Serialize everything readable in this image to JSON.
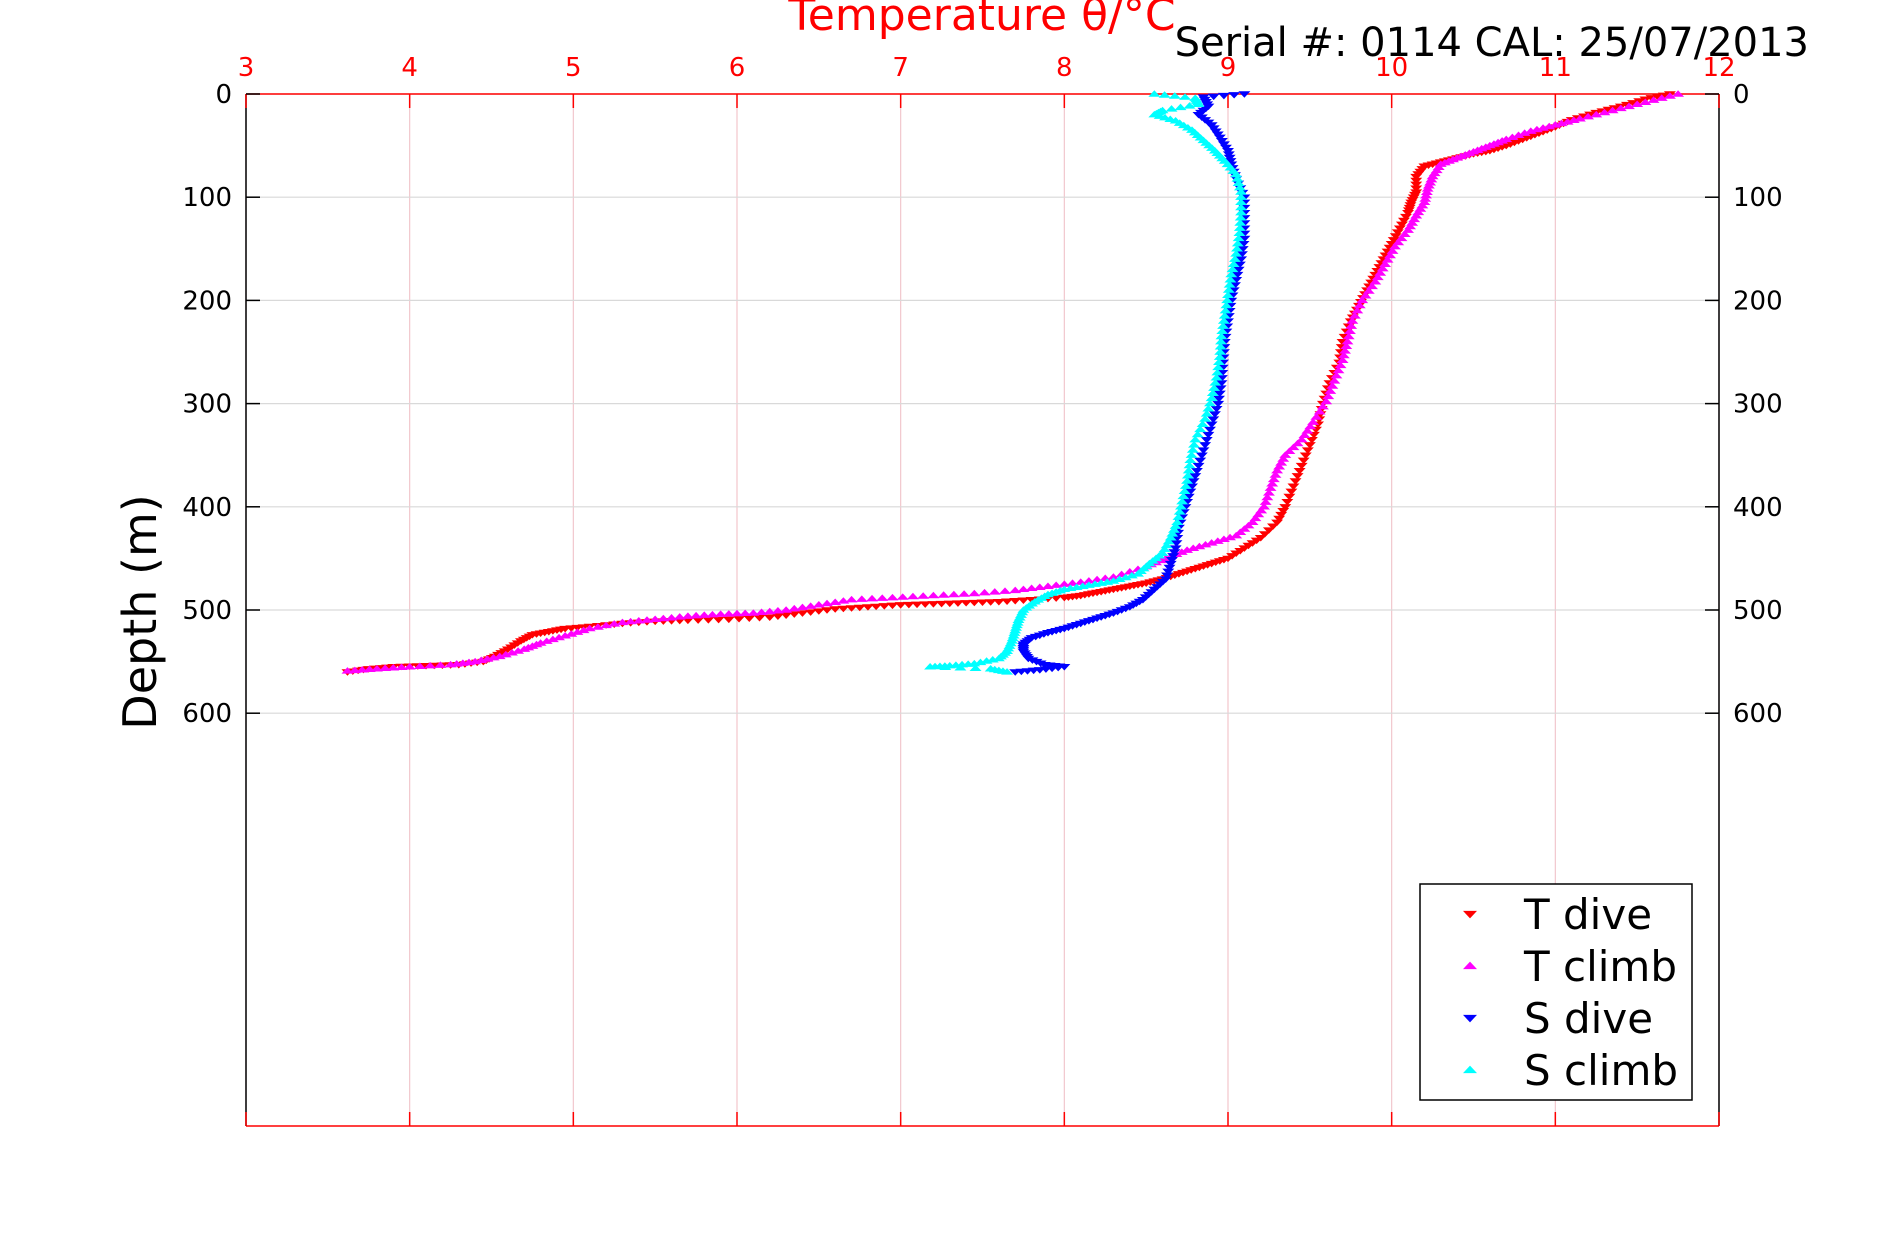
{
  "chart_data": {
    "type": "scatter",
    "xlabel": "Temperature θ/°C",
    "ylabel": "Depth (m)",
    "annotation": "Serial #: 0114  CAL: 25/07/2013",
    "xlim": [
      3,
      12
    ],
    "ylim": [
      0,
      1000
    ],
    "y_reversed": true,
    "x_ticks": [
      3,
      4,
      5,
      6,
      7,
      8,
      9,
      10,
      11,
      12
    ],
    "y_ticks": [
      0,
      100,
      200,
      300,
      400,
      500,
      600
    ],
    "grid": true,
    "legend_position": "bottom-right",
    "series": [
      {
        "name": "T dive",
        "color": "#ff0000",
        "marker": "triangle-down",
        "points": [
          [
            11.7,
            0
          ],
          [
            11.55,
            5
          ],
          [
            11.4,
            12
          ],
          [
            11.25,
            18
          ],
          [
            11.1,
            25
          ],
          [
            11.0,
            32
          ],
          [
            10.9,
            38
          ],
          [
            10.8,
            44
          ],
          [
            10.7,
            50
          ],
          [
            10.6,
            55
          ],
          [
            10.5,
            58
          ],
          [
            10.4,
            62
          ],
          [
            10.3,
            66
          ],
          [
            10.2,
            70
          ],
          [
            10.15,
            80
          ],
          [
            10.15,
            95
          ],
          [
            10.12,
            105
          ],
          [
            10.1,
            115
          ],
          [
            10.05,
            130
          ],
          [
            10.0,
            145
          ],
          [
            9.95,
            160
          ],
          [
            9.9,
            175
          ],
          [
            9.85,
            190
          ],
          [
            9.8,
            205
          ],
          [
            9.75,
            220
          ],
          [
            9.7,
            240
          ],
          [
            9.68,
            260
          ],
          [
            9.62,
            280
          ],
          [
            9.58,
            300
          ],
          [
            9.55,
            320
          ],
          [
            9.5,
            340
          ],
          [
            9.45,
            360
          ],
          [
            9.4,
            380
          ],
          [
            9.35,
            400
          ],
          [
            9.3,
            415
          ],
          [
            9.2,
            430
          ],
          [
            9.1,
            440
          ],
          [
            9.0,
            450
          ],
          [
            8.9,
            455
          ],
          [
            8.8,
            460
          ],
          [
            8.7,
            465
          ],
          [
            8.6,
            470
          ],
          [
            8.5,
            474
          ],
          [
            8.4,
            477
          ],
          [
            8.3,
            480
          ],
          [
            8.2,
            483
          ],
          [
            8.1,
            486
          ],
          [
            8.0,
            488
          ],
          [
            7.8,
            490
          ],
          [
            7.6,
            492
          ],
          [
            7.4,
            493
          ],
          [
            7.2,
            494
          ],
          [
            7.0,
            495
          ],
          [
            6.8,
            497
          ],
          [
            6.6,
            499
          ],
          [
            6.4,
            503
          ],
          [
            6.2,
            507
          ],
          [
            5.95,
            509
          ],
          [
            5.7,
            510
          ],
          [
            5.5,
            511
          ],
          [
            5.3,
            513
          ],
          [
            5.1,
            516
          ],
          [
            4.95,
            518
          ],
          [
            4.85,
            521
          ],
          [
            4.75,
            524
          ],
          [
            4.68,
            530
          ],
          [
            4.6,
            538
          ],
          [
            4.52,
            545
          ],
          [
            4.45,
            550
          ],
          [
            4.3,
            553
          ],
          [
            4.1,
            554
          ],
          [
            3.9,
            555
          ],
          [
            3.75,
            557
          ],
          [
            3.62,
            560
          ]
        ]
      },
      {
        "name": "T climb",
        "color": "#ff00ff",
        "marker": "triangle-up",
        "points": [
          [
            11.75,
            0
          ],
          [
            11.55,
            8
          ],
          [
            11.35,
            16
          ],
          [
            11.15,
            24
          ],
          [
            11.0,
            30
          ],
          [
            10.85,
            36
          ],
          [
            10.7,
            44
          ],
          [
            10.6,
            50
          ],
          [
            10.5,
            56
          ],
          [
            10.4,
            62
          ],
          [
            10.3,
            68
          ],
          [
            10.25,
            80
          ],
          [
            10.22,
            92
          ],
          [
            10.2,
            105
          ],
          [
            10.15,
            118
          ],
          [
            10.1,
            132
          ],
          [
            10.02,
            148
          ],
          [
            9.96,
            165
          ],
          [
            9.9,
            182
          ],
          [
            9.82,
            200
          ],
          [
            9.76,
            220
          ],
          [
            9.73,
            240
          ],
          [
            9.7,
            258
          ],
          [
            9.65,
            278
          ],
          [
            9.6,
            298
          ],
          [
            9.52,
            318
          ],
          [
            9.45,
            335
          ],
          [
            9.35,
            350
          ],
          [
            9.3,
            365
          ],
          [
            9.26,
            382
          ],
          [
            9.22,
            400
          ],
          [
            9.15,
            415
          ],
          [
            9.05,
            428
          ],
          [
            8.9,
            435
          ],
          [
            8.75,
            442
          ],
          [
            8.62,
            450
          ],
          [
            8.5,
            458
          ],
          [
            8.3,
            468
          ],
          [
            8.1,
            473
          ],
          [
            7.9,
            477
          ],
          [
            7.7,
            481
          ],
          [
            7.45,
            484
          ],
          [
            7.2,
            486
          ],
          [
            6.95,
            488
          ],
          [
            6.7,
            490
          ],
          [
            6.5,
            495
          ],
          [
            6.3,
            500
          ],
          [
            6.1,
            503
          ],
          [
            5.9,
            504
          ],
          [
            5.7,
            506
          ],
          [
            5.5,
            509
          ],
          [
            5.3,
            512
          ],
          [
            5.1,
            518
          ],
          [
            4.95,
            525
          ],
          [
            4.8,
            532
          ],
          [
            4.7,
            538
          ],
          [
            4.55,
            545
          ],
          [
            4.4,
            550
          ],
          [
            4.25,
            553
          ],
          [
            4.0,
            555
          ],
          [
            3.8,
            557
          ],
          [
            3.62,
            559
          ]
        ]
      },
      {
        "name": "S dive",
        "color": "#0000ff",
        "marker": "triangle-down",
        "points": [
          [
            9.1,
            0
          ],
          [
            8.85,
            3
          ],
          [
            8.88,
            12
          ],
          [
            8.82,
            20
          ],
          [
            8.9,
            30
          ],
          [
            8.95,
            42
          ],
          [
            9.0,
            55
          ],
          [
            9.02,
            68
          ],
          [
            9.05,
            82
          ],
          [
            9.1,
            100
          ],
          [
            9.1,
            120
          ],
          [
            9.1,
            140
          ],
          [
            9.08,
            160
          ],
          [
            9.05,
            180
          ],
          [
            9.02,
            200
          ],
          [
            9.0,
            220
          ],
          [
            8.98,
            240
          ],
          [
            8.97,
            260
          ],
          [
            8.96,
            280
          ],
          [
            8.94,
            300
          ],
          [
            8.9,
            320
          ],
          [
            8.86,
            340
          ],
          [
            8.82,
            360
          ],
          [
            8.78,
            380
          ],
          [
            8.74,
            400
          ],
          [
            8.7,
            420
          ],
          [
            8.68,
            440
          ],
          [
            8.65,
            455
          ],
          [
            8.62,
            470
          ],
          [
            8.55,
            480
          ],
          [
            8.48,
            490
          ],
          [
            8.4,
            497
          ],
          [
            8.3,
            503
          ],
          [
            8.2,
            508
          ],
          [
            8.1,
            513
          ],
          [
            8.0,
            518
          ],
          [
            7.9,
            522
          ],
          [
            7.8,
            527
          ],
          [
            7.75,
            533
          ],
          [
            7.75,
            540
          ],
          [
            7.78,
            547
          ],
          [
            7.88,
            553
          ],
          [
            8.0,
            555
          ],
          [
            7.85,
            558
          ],
          [
            7.7,
            560
          ]
        ]
      },
      {
        "name": "S climb",
        "color": "#00ffff",
        "marker": "triangle-up",
        "points": [
          [
            8.55,
            0
          ],
          [
            8.8,
            4
          ],
          [
            8.82,
            10
          ],
          [
            8.6,
            16
          ],
          [
            8.55,
            20
          ],
          [
            8.68,
            26
          ],
          [
            8.78,
            35
          ],
          [
            8.85,
            45
          ],
          [
            8.92,
            55
          ],
          [
            8.98,
            65
          ],
          [
            9.05,
            78
          ],
          [
            9.08,
            95
          ],
          [
            9.08,
            115
          ],
          [
            9.07,
            135
          ],
          [
            9.05,
            155
          ],
          [
            9.02,
            175
          ],
          [
            9.0,
            195
          ],
          [
            8.98,
            215
          ],
          [
            8.96,
            235
          ],
          [
            8.95,
            255
          ],
          [
            8.93,
            275
          ],
          [
            8.9,
            295
          ],
          [
            8.86,
            315
          ],
          [
            8.8,
            335
          ],
          [
            8.77,
            355
          ],
          [
            8.75,
            375
          ],
          [
            8.72,
            395
          ],
          [
            8.69,
            415
          ],
          [
            8.65,
            430
          ],
          [
            8.6,
            445
          ],
          [
            8.52,
            455
          ],
          [
            8.45,
            465
          ],
          [
            8.3,
            472
          ],
          [
            8.15,
            476
          ],
          [
            8.0,
            480
          ],
          [
            7.9,
            485
          ],
          [
            7.82,
            492
          ],
          [
            7.75,
            500
          ],
          [
            7.72,
            510
          ],
          [
            7.7,
            520
          ],
          [
            7.68,
            530
          ],
          [
            7.65,
            540
          ],
          [
            7.6,
            547
          ],
          [
            7.45,
            552
          ],
          [
            7.3,
            554
          ],
          [
            7.18,
            555
          ],
          [
            7.55,
            557
          ],
          [
            7.65,
            560
          ]
        ]
      }
    ]
  }
}
